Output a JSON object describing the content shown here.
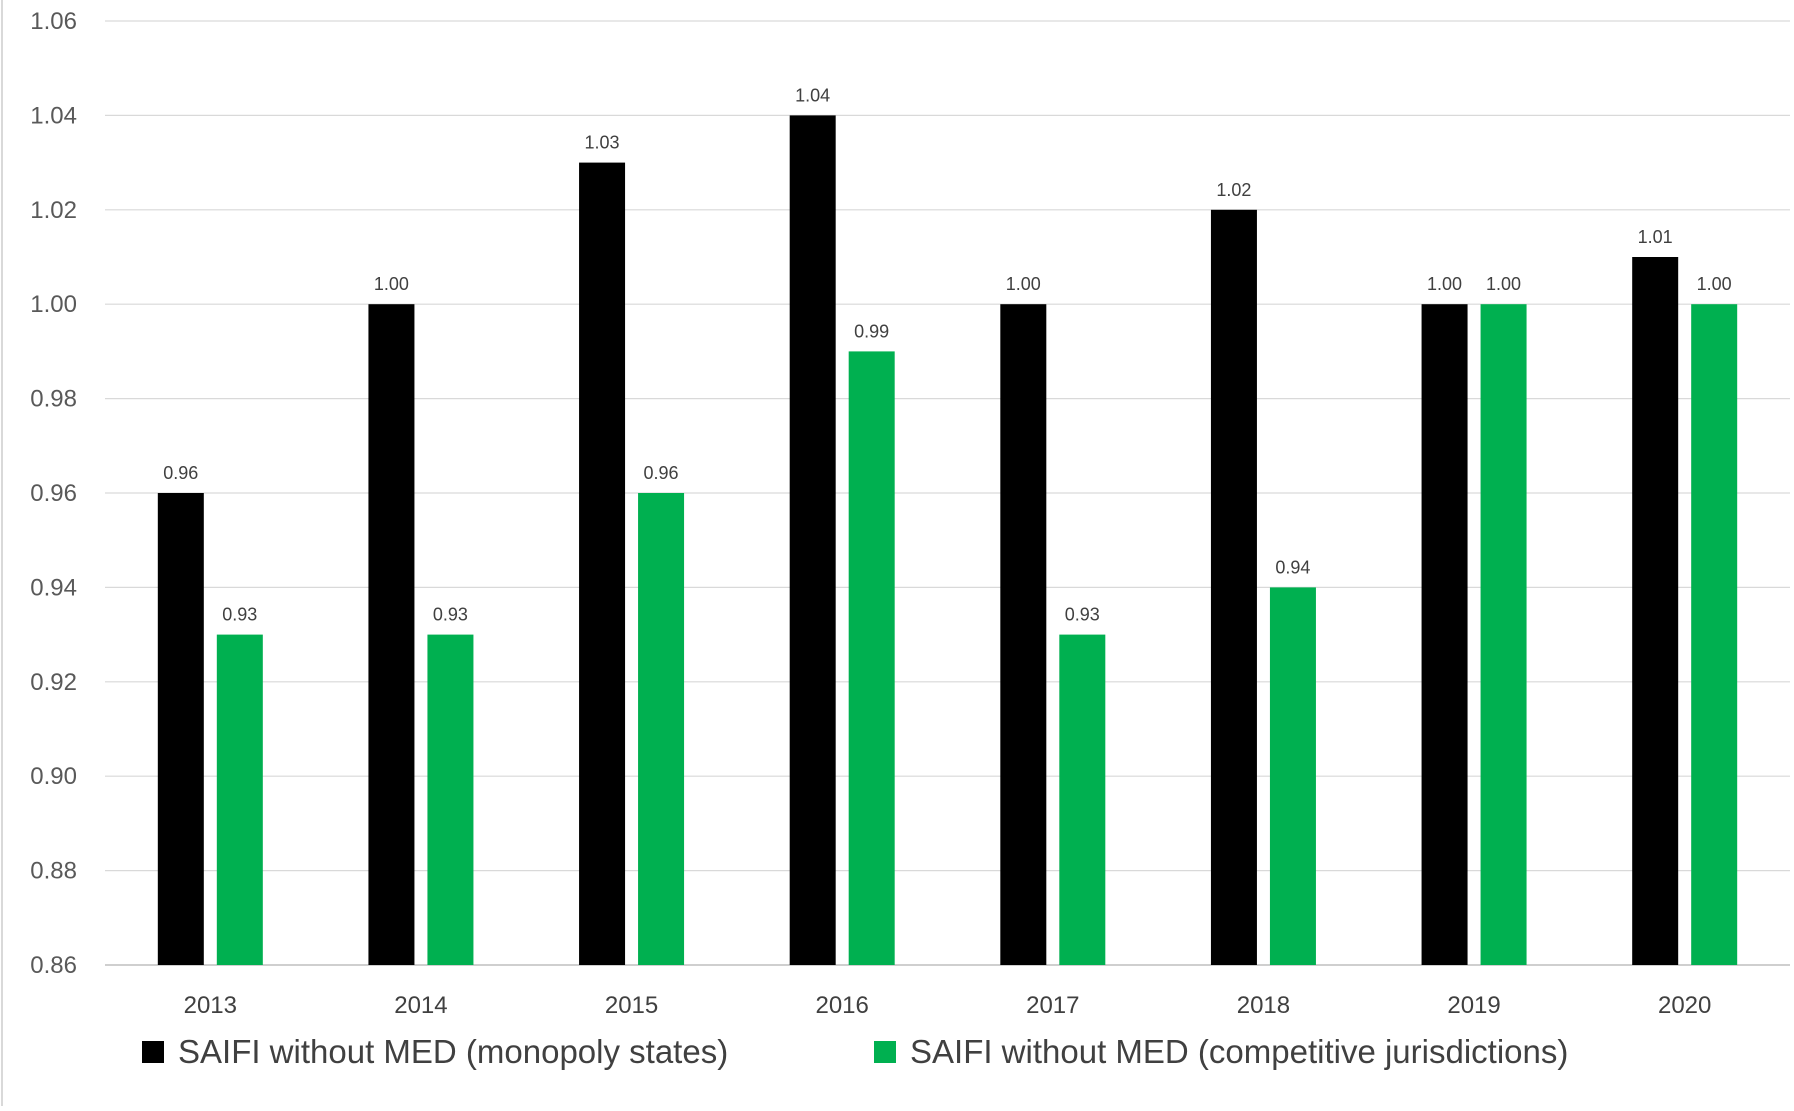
{
  "chart_data": {
    "type": "bar",
    "title": "",
    "xlabel": "",
    "ylabel": "",
    "categories": [
      "2013",
      "2014",
      "2015",
      "2016",
      "2017",
      "2018",
      "2019",
      "2020"
    ],
    "series": [
      {
        "name": "SAIFI without MED (monopoly states)",
        "color": "#000000",
        "values": [
          0.96,
          1.0,
          1.03,
          1.04,
          1.0,
          1.02,
          1.0,
          1.01
        ],
        "labels": [
          "0.96",
          "1.00",
          "1.03",
          "1.04",
          "1.00",
          "1.02",
          "1.00",
          "1.01"
        ]
      },
      {
        "name": "SAIFI without MED (competitive jurisdictions)",
        "color": "#00B050",
        "values": [
          0.93,
          0.93,
          0.96,
          0.99,
          0.93,
          0.94,
          1.0,
          1.0
        ],
        "labels": [
          "0.93",
          "0.93",
          "0.96",
          "0.99",
          "0.93",
          "0.94",
          "1.00",
          "1.00"
        ]
      }
    ],
    "ylim": [
      0.86,
      1.06
    ],
    "yticks": [
      "0.86",
      "0.88",
      "0.90",
      "0.92",
      "0.94",
      "0.96",
      "0.98",
      "1.00",
      "1.02",
      "1.04",
      "1.06"
    ],
    "grid": true,
    "legend": "bottom",
    "colors": {
      "gridline": "#D9D9D9",
      "axis": "#BFBFBF"
    }
  }
}
